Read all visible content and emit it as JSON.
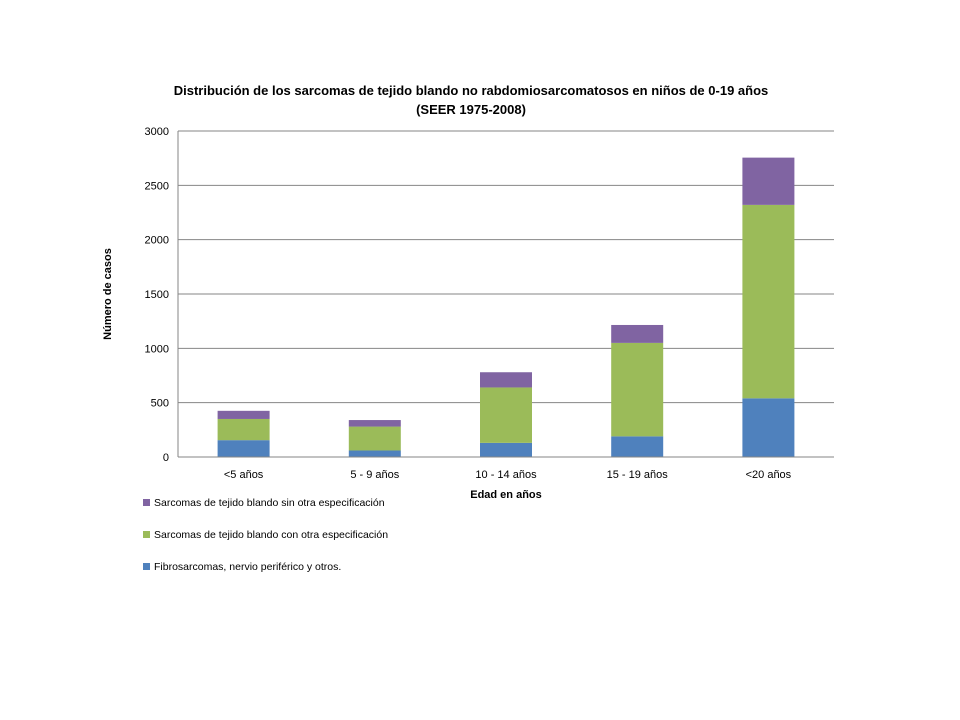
{
  "chart_data": {
    "type": "bar",
    "stacked": true,
    "title": "Distribución de los sarcomas de tejido blando no rabdomiosarcomatosos en niños de 0-19 años",
    "subtitle": "(SEER 1975-2008)",
    "xlabel": "Edad en años",
    "ylabel": "Número de casos",
    "ylim": [
      0,
      3000
    ],
    "yticks": [
      0,
      500,
      1000,
      1500,
      2000,
      2500,
      3000
    ],
    "grid": true,
    "legend_position": "bottom-left",
    "categories": [
      "<5 años",
      "5 - 9 años",
      "10 - 14 años",
      "15 - 19 años",
      "<20 años"
    ],
    "series": [
      {
        "name": "Fibrosarcomas, nervio periférico y otros.",
        "color": "#4f81bd",
        "values": [
          155,
          60,
          130,
          190,
          540
        ]
      },
      {
        "name": "Sarcomas de tejido blando con otra especificación",
        "color": "#9bbb59",
        "values": [
          195,
          220,
          510,
          860,
          1780
        ]
      },
      {
        "name": "Sarcomas de tejido blando sin otra especificación",
        "color": "#8064a2",
        "values": [
          75,
          60,
          140,
          165,
          435
        ]
      }
    ]
  }
}
